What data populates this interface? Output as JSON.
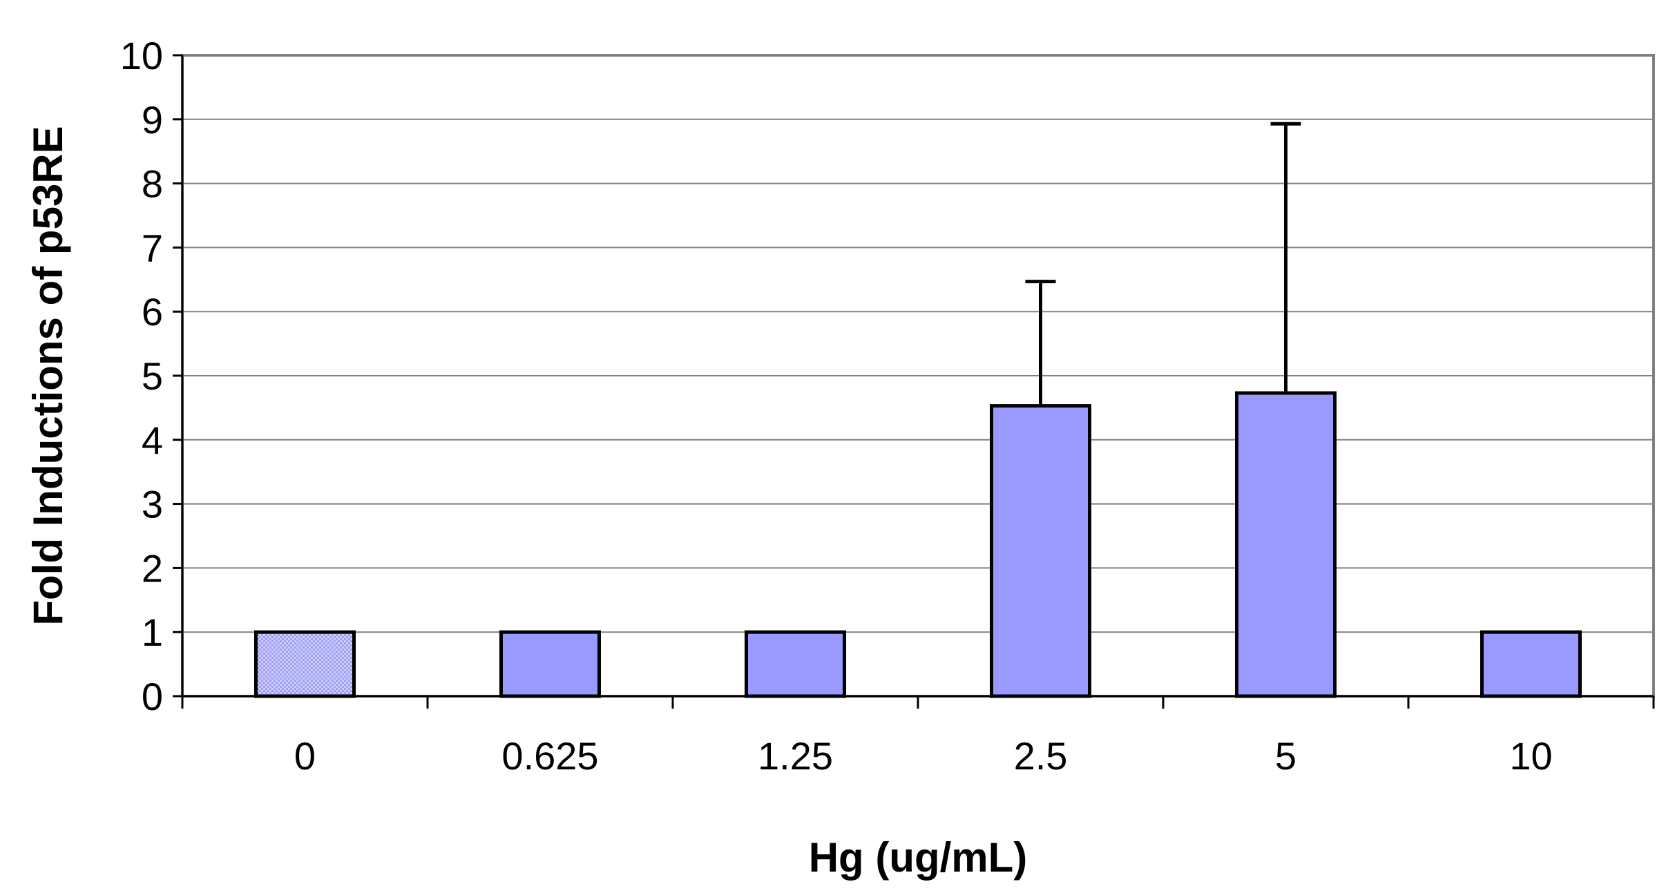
{
  "chart_data": {
    "type": "bar",
    "title": "",
    "xlabel": "Hg (ug/mL)",
    "ylabel": "Fold Inductions of p53RE",
    "categories": [
      "0",
      "0.625",
      "1.25",
      "2.5",
      "5",
      "10"
    ],
    "series": [
      {
        "values": [
          1,
          1,
          1,
          4.53,
          4.73,
          1
        ],
        "error_upper": [
          0,
          0,
          0,
          1.94,
          4.2,
          0
        ]
      }
    ],
    "ylim": [
      0,
      10
    ],
    "yticks": [
      "0",
      "1",
      "2",
      "3",
      "4",
      "5",
      "6",
      "7",
      "8",
      "9",
      "10"
    ],
    "grid": true,
    "legend": "none",
    "colors": {
      "bar": "#9999ff",
      "control_bar": "#ccccff",
      "plot_background": "#ffffff",
      "grid": "#808080",
      "frame": "#808080",
      "bar_outline": "#000000"
    }
  }
}
